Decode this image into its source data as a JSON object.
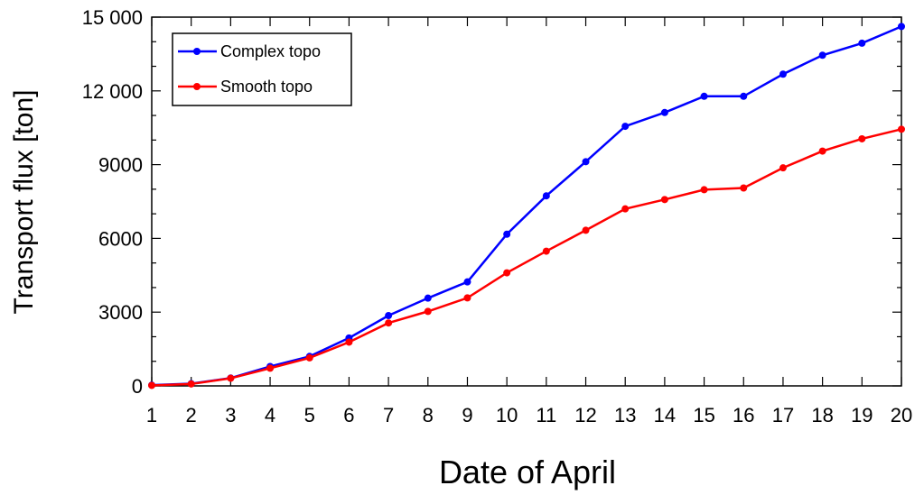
{
  "chart_data": {
    "type": "line",
    "xlabel": "Date of April",
    "ylabel": "Transport  flux [ton]",
    "x": [
      1,
      2,
      3,
      4,
      5,
      6,
      7,
      8,
      9,
      10,
      11,
      12,
      13,
      14,
      15,
      16,
      17,
      18,
      19,
      20
    ],
    "xlim": [
      1,
      20
    ],
    "ylim": [
      0,
      15000
    ],
    "yticks": [
      0,
      3000,
      6000,
      9000,
      12000,
      15000
    ],
    "ytick_labels": [
      "0",
      "3000",
      "6000",
      "9000",
      "12 000",
      "15 000"
    ],
    "y_minor_step": 1000,
    "grid": false,
    "legend_position": "top-left",
    "series": [
      {
        "name": "Complex topo",
        "color": "#0000ff",
        "values": [
          30,
          90,
          320,
          790,
          1200,
          1950,
          2860,
          3570,
          4230,
          6170,
          7730,
          9120,
          10560,
          11120,
          11780,
          11780,
          12680,
          13450,
          13940,
          14620
        ]
      },
      {
        "name": "Smooth topo",
        "color": "#ff0000",
        "values": [
          20,
          80,
          310,
          720,
          1140,
          1780,
          2560,
          3030,
          3580,
          4600,
          5480,
          6330,
          7200,
          7580,
          7980,
          8050,
          8870,
          9550,
          10050,
          10440
        ]
      }
    ]
  }
}
